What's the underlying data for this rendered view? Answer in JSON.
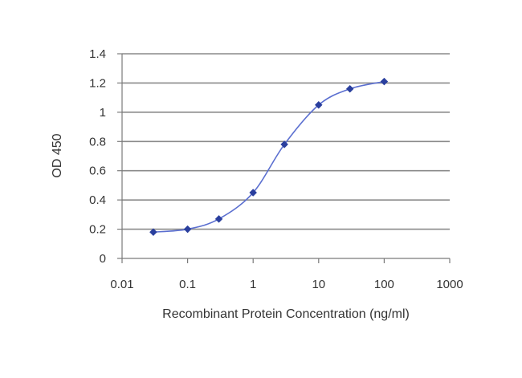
{
  "chart_data": {
    "type": "line",
    "title": "",
    "xlabel": "Recombinant Protein Concentration (ng/ml)",
    "ylabel": "OD 450",
    "x_scale": "log",
    "xlim": [
      0.01,
      1000
    ],
    "ylim": [
      0,
      1.4
    ],
    "x_ticks": [
      0.01,
      0.1,
      1,
      10,
      100,
      1000
    ],
    "x_tick_labels": [
      "0.01",
      "0.1",
      "1",
      "10",
      "100",
      "1000"
    ],
    "y_ticks": [
      0,
      0.2,
      0.4,
      0.6,
      0.8,
      1,
      1.2,
      1.4
    ],
    "y_tick_labels": [
      "0",
      "0.2",
      "0.4",
      "0.6",
      "0.8",
      "1",
      "1.2",
      "1.4"
    ],
    "grid": "horizontal",
    "legend": "none",
    "series": [
      {
        "x": [
          0.03,
          0.1,
          0.3,
          1,
          3,
          10,
          30,
          100
        ],
        "y": [
          0.18,
          0.2,
          0.27,
          0.45,
          0.78,
          1.05,
          1.16,
          1.21
        ],
        "color": "#2a3f9e",
        "marker": "diamond"
      }
    ],
    "colors": {
      "line": "#5b6fd0",
      "marker": "#2a3f9e",
      "grid": "#8a8a8a",
      "axis": "#7a7a7a"
    }
  }
}
